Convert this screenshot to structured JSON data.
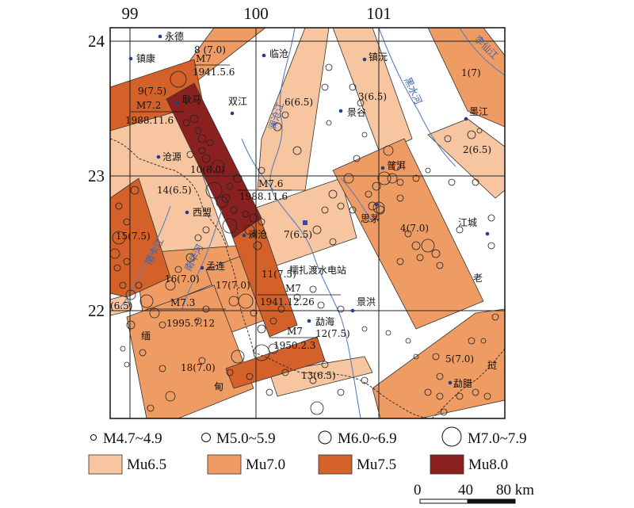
{
  "colors": {
    "mu65": "#f7c6a0",
    "mu70": "#ef9c64",
    "mu75": "#d4612a",
    "mu80": "#8b2020",
    "river": "#5a7fc0",
    "border": "#333333",
    "grid": "#222222"
  },
  "axes": {
    "lon_ticks": [
      "99",
      "100",
      "101"
    ],
    "lat_ticks": [
      "24",
      "23",
      "22"
    ]
  },
  "places": {
    "yongde": "永德",
    "zhenkang": "镇康",
    "lincang": "临沧",
    "zhenyuan": "镇沅",
    "gengma": "耿马",
    "shuangjiang": "双江",
    "jinggu": "景谷",
    "mojiang": "墨江",
    "cangyuan": "沧源",
    "puer": "普洱",
    "ximeng": "西盟",
    "simao": "思茅",
    "lancang": "澜沧",
    "jiangcheng": "江城",
    "menglian": "孟连",
    "nuozhadu": "糯扎渡水电站",
    "jinghong": "景洪",
    "menghai": "勐海",
    "mengla": "勐腊",
    "lao": "老",
    "wo": "挝",
    "mian": "缅",
    "dian": "甸"
  },
  "rivers": {
    "lancang_jiang": "澜沧江",
    "heishui_he": "黑水河",
    "nankan_jiang": "南卡江",
    "nanhua_he": "南华河",
    "lixian_jiang": "李仙江"
  },
  "zones": [
    {
      "id": "z1",
      "label": "1(7)"
    },
    {
      "id": "z2",
      "label": "2(6.5)"
    },
    {
      "id": "z3",
      "label": "3(6.5)"
    },
    {
      "id": "z4",
      "label": "4(7.0)"
    },
    {
      "id": "z5",
      "label": "5(7.0)"
    },
    {
      "id": "z6",
      "label": "6(6.5)"
    },
    {
      "id": "z7",
      "label": "7(6.5)"
    },
    {
      "id": "z8",
      "label": "8 (7.0)"
    },
    {
      "id": "z9",
      "label": "9(7.5)"
    },
    {
      "id": "z10",
      "label": "10(8.0)"
    },
    {
      "id": "z11",
      "label": "11(7.5)"
    },
    {
      "id": "z12",
      "label": "12(7.5)"
    },
    {
      "id": "z13",
      "label": "13(6.5)"
    },
    {
      "id": "z14",
      "label": "14(6.5)"
    },
    {
      "id": "z15",
      "label": "15(7.5)"
    },
    {
      "id": "z16",
      "label": "16(7.0)"
    },
    {
      "id": "z17",
      "label": "17(7.0)"
    },
    {
      "id": "z18",
      "label": "18(7.0)"
    },
    {
      "id": "z19",
      "label": "(6.5)"
    }
  ],
  "events": [
    {
      "mag": "M7",
      "date": "1941.5.6"
    },
    {
      "mag": "M7.2",
      "date": "1988.11.6"
    },
    {
      "mag": "M7.6",
      "date": "1988.11.6"
    },
    {
      "mag": "M7",
      "date": "1941.12.26"
    },
    {
      "mag": "M7.3",
      "date": "1995.7.12"
    },
    {
      "mag": "M7",
      "date": "1950.2.3"
    }
  ],
  "legend": {
    "mag_classes": [
      "M4.7~4.9",
      "M5.0~5.9",
      "M6.0~6.9",
      "M7.0~7.9"
    ],
    "zone_classes": [
      "Mu6.5",
      "Mu7.0",
      "Mu7.5",
      "Mu8.0"
    ],
    "scale": [
      "0",
      "40",
      "80 km"
    ]
  }
}
